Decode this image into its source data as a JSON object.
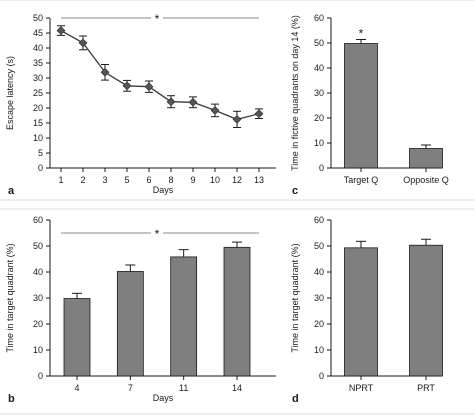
{
  "panels": [
    {
      "id": "a",
      "letter": "a"
    },
    {
      "id": "b",
      "letter": "b"
    },
    {
      "id": "c",
      "letter": "c"
    },
    {
      "id": "d",
      "letter": "d"
    }
  ],
  "chart_data": [
    {
      "id": "a",
      "type": "line",
      "xlabel": "Days",
      "ylabel": "Escape latency (s)",
      "ylim": [
        0,
        50
      ],
      "yticks": [
        0,
        5,
        10,
        15,
        20,
        25,
        30,
        35,
        40,
        45,
        50
      ],
      "categories": [
        "1",
        "2",
        "3",
        "5",
        "6",
        "8",
        "9",
        "10",
        "12",
        "13"
      ],
      "values": [
        45.8,
        41.7,
        31.9,
        27.4,
        27.1,
        22.1,
        21.9,
        19.2,
        16.2,
        18.1
      ],
      "errors": [
        1.6,
        2.3,
        2.6,
        1.8,
        1.9,
        2.0,
        1.8,
        2.1,
        2.7,
        1.6
      ],
      "annotation": "*",
      "grid": false
    },
    {
      "id": "b",
      "type": "bar",
      "xlabel": "Days",
      "ylabel": "Time in target quadrant (%)",
      "ylim": [
        0,
        60
      ],
      "yticks": [
        0,
        10,
        20,
        30,
        40,
        50,
        60
      ],
      "categories": [
        "4",
        "7",
        "11",
        "14"
      ],
      "values": [
        29.8,
        40.2,
        45.8,
        49.5
      ],
      "errors": [
        2.0,
        2.5,
        2.8,
        2.0
      ],
      "annotation": "*",
      "grid": false
    },
    {
      "id": "c",
      "type": "bar",
      "xlabel": "",
      "ylabel": "Time in fictive quadrants on day 14 (%)",
      "ylim": [
        0,
        60
      ],
      "yticks": [
        0,
        10,
        20,
        30,
        40,
        50,
        60
      ],
      "categories": [
        "Target Q",
        "Opposite Q"
      ],
      "values": [
        49.8,
        7.8
      ],
      "errors": [
        1.6,
        1.4
      ],
      "annotation": "*",
      "grid": false
    },
    {
      "id": "d",
      "type": "bar",
      "xlabel": "",
      "ylabel": "Time in target quadrant (%)",
      "ylim": [
        0,
        60
      ],
      "yticks": [
        0,
        10,
        20,
        30,
        40,
        50,
        60
      ],
      "categories": [
        "NPRT",
        "PRT"
      ],
      "values": [
        49.3,
        50.3
      ],
      "errors": [
        2.5,
        2.3
      ],
      "annotation": "",
      "grid": false
    }
  ]
}
